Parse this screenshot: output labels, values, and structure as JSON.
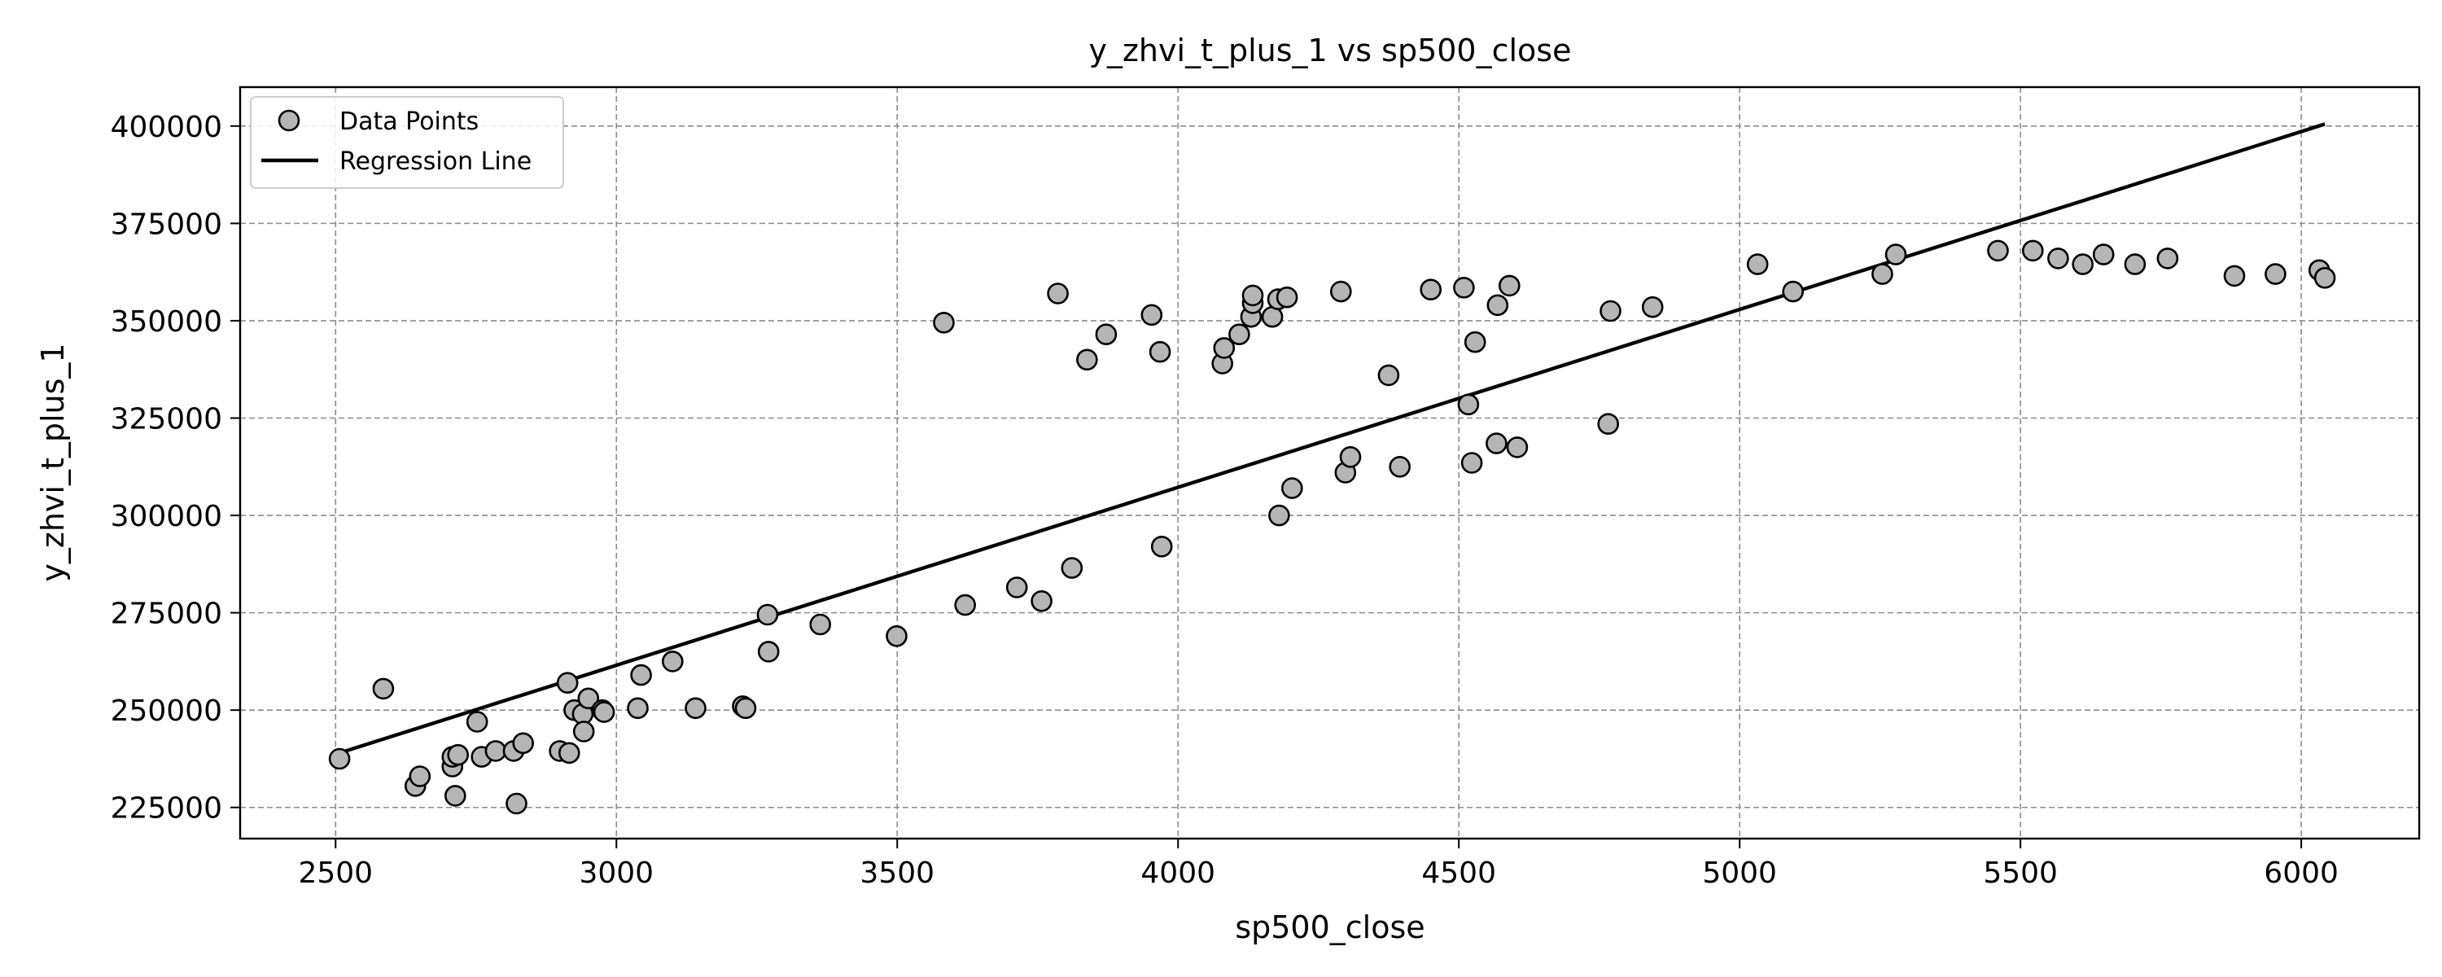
{
  "chart_data": {
    "type": "scatter",
    "title": "y_zhvi_t_plus_1 vs sp500_close",
    "xlabel": "sp500_close",
    "ylabel": "y_zhvi_t_plus_1",
    "xlim": [
      2330,
      6210
    ],
    "ylim": [
      217000,
      410000
    ],
    "x_ticks": [
      2500,
      3000,
      3500,
      4000,
      4500,
      5000,
      5500,
      6000
    ],
    "y_ticks": [
      225000,
      250000,
      275000,
      300000,
      325000,
      350000,
      375000,
      400000
    ],
    "grid": true,
    "legend_position": "top-left",
    "legend": [
      "Data Points",
      "Regression Line"
    ],
    "series": [
      {
        "name": "Data Points",
        "type": "scatter",
        "color": "#b5b5b5",
        "points": [
          [
            2507,
            237500
          ],
          [
            2585,
            255500
          ],
          [
            2642,
            230500
          ],
          [
            2650,
            233000
          ],
          [
            2708,
            235500
          ],
          [
            2708,
            238000
          ],
          [
            2713,
            228000
          ],
          [
            2718,
            238500
          ],
          [
            2752,
            247000
          ],
          [
            2760,
            238000
          ],
          [
            2785,
            239500
          ],
          [
            2817,
            239500
          ],
          [
            2822,
            226000
          ],
          [
            2834,
            241500
          ],
          [
            2899,
            239500
          ],
          [
            2913,
            257000
          ],
          [
            2916,
            239000
          ],
          [
            2925,
            250000
          ],
          [
            2940,
            249000
          ],
          [
            2942,
            244500
          ],
          [
            2950,
            253000
          ],
          [
            2975,
            250000
          ],
          [
            2978,
            249500
          ],
          [
            3038,
            250500
          ],
          [
            3044,
            259000
          ],
          [
            3100,
            262500
          ],
          [
            3141,
            250500
          ],
          [
            3225,
            251000
          ],
          [
            3230,
            250500
          ],
          [
            3269,
            274500
          ],
          [
            3271,
            265000
          ],
          [
            3363,
            272000
          ],
          [
            3499,
            269000
          ],
          [
            3583,
            349500
          ],
          [
            3621,
            277000
          ],
          [
            3713,
            281500
          ],
          [
            3757,
            278000
          ],
          [
            3786,
            357000
          ],
          [
            3811,
            286500
          ],
          [
            3838,
            340000
          ],
          [
            3872,
            346500
          ],
          [
            3953,
            351500
          ],
          [
            3968,
            342000
          ],
          [
            3971,
            292000
          ],
          [
            4079,
            339000
          ],
          [
            4082,
            343000
          ],
          [
            4109,
            346500
          ],
          [
            4130,
            351000
          ],
          [
            4133,
            354500
          ],
          [
            4133,
            356500
          ],
          [
            4168,
            351000
          ],
          [
            4178,
            355500
          ],
          [
            4180,
            300000
          ],
          [
            4194,
            356000
          ],
          [
            4203,
            307000
          ],
          [
            4290,
            357500
          ],
          [
            4298,
            311000
          ],
          [
            4307,
            315000
          ],
          [
            4375,
            336000
          ],
          [
            4395,
            312500
          ],
          [
            4450,
            358000
          ],
          [
            4509,
            358500
          ],
          [
            4517,
            328500
          ],
          [
            4523,
            313500
          ],
          [
            4529,
            344500
          ],
          [
            4567,
            318500
          ],
          [
            4569,
            354000
          ],
          [
            4590,
            359000
          ],
          [
            4604,
            317500
          ],
          [
            4766,
            323500
          ],
          [
            4770,
            352500
          ],
          [
            4845,
            353500
          ],
          [
            5032,
            364500
          ],
          [
            5095,
            357500
          ],
          [
            5254,
            362000
          ],
          [
            5278,
            367000
          ],
          [
            5460,
            368000
          ],
          [
            5522,
            368000
          ],
          [
            5567,
            366000
          ],
          [
            5611,
            364500
          ],
          [
            5648,
            367000
          ],
          [
            5704,
            364500
          ],
          [
            5762,
            366000
          ],
          [
            5881,
            361500
          ],
          [
            5954,
            362000
          ],
          [
            6032,
            363000
          ],
          [
            6042,
            361000
          ]
        ]
      },
      {
        "name": "Regression Line",
        "type": "line",
        "color": "#000000",
        "points": [
          [
            2507,
            239000
          ],
          [
            6042,
            400500
          ]
        ]
      }
    ]
  }
}
